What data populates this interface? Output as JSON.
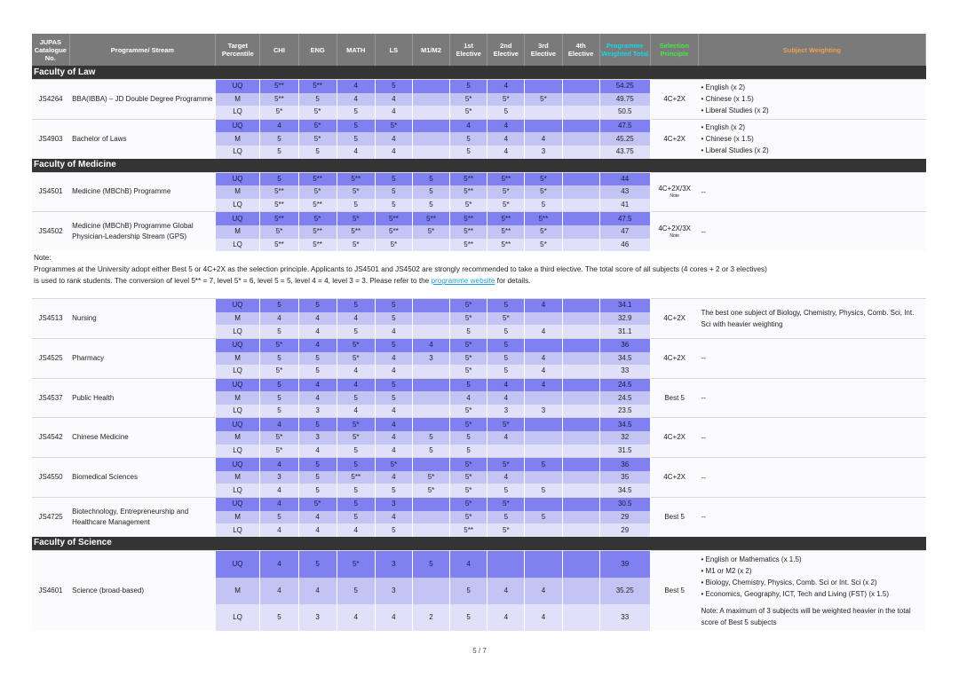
{
  "header": {
    "catalogue": "JUPAS Catalogue No.",
    "programme": "Programme/ Stream",
    "target": "Target Percentile",
    "chi": "CHI",
    "eng": "ENG",
    "math": "MATH",
    "ls": "LS",
    "m1m2": "M1/M2",
    "e1": "1st Elective",
    "e2": "2nd Elective",
    "e3": "3rd Elective",
    "e4": "4th Elective",
    "total": "Programme Weighted Total",
    "selection": "Selection Principle",
    "weighting": "Subject Weighting"
  },
  "faculties": {
    "law": "Faculty of Law",
    "medicine": "Faculty of Medicine",
    "science": "Faculty of Science"
  },
  "note": {
    "title": "Note:",
    "line1": "Programmes at the University adopt either Best 5 or 4C+2X as the selection principle. Applicants to JS4501 and JS4502 are strongly recommended to take a third elective.  The total score of all subjects (4 cores + 2 or 3 electives)",
    "line2": "is used to rank students. The conversion of  level 5** = 7, level 5* = 6, level 5 = 5, level 4 = 4, level 3 = 3. Please refer to the",
    "link": "programme website",
    "line2_end": "for details."
  },
  "programmes": [
    {
      "code": "JS4264",
      "name": "BBA(IBBA) – JD Double Degree Programme",
      "selection": "4C+2X",
      "selection_note": "",
      "weighting": [
        "• English (x 2)",
        "• Chinese (x 1.5)",
        "• Liberal Studies (x 2)"
      ],
      "rows": [
        [
          "UQ",
          "5**",
          "5**",
          "4",
          "5",
          "",
          "5",
          "4",
          "",
          "",
          "54.25"
        ],
        [
          "M",
          "5**",
          "5",
          "4",
          "4",
          "",
          "5*",
          "5*",
          "5*",
          "",
          "49.75"
        ],
        [
          "LQ",
          "5*",
          "5*",
          "5",
          "4",
          "",
          "5*",
          "5",
          "",
          "",
          "50.5"
        ]
      ]
    },
    {
      "code": "JS4903",
      "name": "Bachelor of Laws",
      "selection": "4C+2X",
      "selection_note": "",
      "weighting": [
        "• English (x 2)",
        "• Chinese (x 1.5)",
        "• Liberal Studies (x 2)"
      ],
      "rows": [
        [
          "UQ",
          "4",
          "5*",
          "5",
          "5*",
          "",
          "4",
          "4",
          "",
          "",
          "47.5"
        ],
        [
          "M",
          "5",
          "5*",
          "5",
          "4",
          "",
          "5",
          "4",
          "4",
          "",
          "45.25"
        ],
        [
          "LQ",
          "5",
          "5",
          "4",
          "4",
          "",
          "5",
          "4",
          "3",
          "",
          "43.75"
        ]
      ]
    },
    {
      "code": "JS4501",
      "name": "Medicine (MBChB) Programme",
      "selection": "4C+2X/3X",
      "selection_note": "Note",
      "weighting": [
        "--"
      ],
      "rows": [
        [
          "UQ",
          "5",
          "5**",
          "5**",
          "5",
          "5",
          "5**",
          "5**",
          "5*",
          "",
          "44"
        ],
        [
          "M",
          "5**",
          "5*",
          "5*",
          "5",
          "5",
          "5**",
          "5*",
          "5*",
          "",
          "43"
        ],
        [
          "LQ",
          "5**",
          "5**",
          "5",
          "5",
          "5",
          "5*",
          "5*",
          "5",
          "",
          "41"
        ]
      ]
    },
    {
      "code": "JS4502",
      "name": "Medicine (MBChB) Programme Global Physician-Leadership Stream (GPS)",
      "selection": "4C+2X/3X",
      "selection_note": "Note",
      "weighting": [
        "--"
      ],
      "rows": [
        [
          "UQ",
          "5**",
          "5*",
          "5*",
          "5**",
          "5**",
          "5**",
          "5**",
          "5**",
          "",
          "47.5"
        ],
        [
          "M",
          "5*",
          "5**",
          "5**",
          "5**",
          "5*",
          "5**",
          "5**",
          "5*",
          "",
          "47"
        ],
        [
          "LQ",
          "5**",
          "5**",
          "5*",
          "5*",
          "",
          "5**",
          "5**",
          "5*",
          "",
          "46"
        ]
      ]
    },
    {
      "code": "JS4513",
      "name": "Nursing",
      "selection": "4C+2X",
      "selection_note": "",
      "weighting": [
        "The best one subject of Biology, Chemistry, Physics, Comb. Sci, Int. Sci with heavier weighting"
      ],
      "rows": [
        [
          "UQ",
          "5",
          "5",
          "5",
          "5",
          "",
          "5*",
          "5",
          "4",
          "",
          "34.1"
        ],
        [
          "M",
          "4",
          "4",
          "4",
          "5",
          "",
          "5*",
          "5*",
          "",
          "",
          "32.9"
        ],
        [
          "LQ",
          "5",
          "4",
          "5",
          "4",
          "",
          "5",
          "5",
          "4",
          "",
          "31.1"
        ]
      ]
    },
    {
      "code": "JS4525",
      "name": "Pharmacy",
      "selection": "4C+2X",
      "selection_note": "",
      "weighting": [
        "--"
      ],
      "rows": [
        [
          "UQ",
          "5*",
          "4",
          "5*",
          "5",
          "4",
          "5*",
          "5",
          "",
          "",
          "36"
        ],
        [
          "M",
          "5",
          "5",
          "5*",
          "4",
          "3",
          "5*",
          "5",
          "4",
          "",
          "34.5"
        ],
        [
          "LQ",
          "5*",
          "5",
          "4",
          "4",
          "",
          "5*",
          "5",
          "4",
          "",
          "33"
        ]
      ]
    },
    {
      "code": "JS4537",
      "name": "Public Health",
      "selection": "Best 5",
      "selection_note": "",
      "weighting": [
        "--"
      ],
      "rows": [
        [
          "UQ",
          "5",
          "4",
          "4",
          "5",
          "",
          "5",
          "4",
          "4",
          "",
          "24.5"
        ],
        [
          "M",
          "5",
          "4",
          "5",
          "5",
          "",
          "4",
          "4",
          "",
          "",
          "24.5"
        ],
        [
          "LQ",
          "5",
          "3",
          "4",
          "4",
          "",
          "5*",
          "3",
          "3",
          "",
          "23.5"
        ]
      ]
    },
    {
      "code": "JS4542",
      "name": "Chinese Medicine",
      "selection": "4C+2X",
      "selection_note": "",
      "weighting": [
        "--"
      ],
      "rows": [
        [
          "UQ",
          "4",
          "5",
          "5*",
          "4",
          "",
          "5*",
          "5*",
          "",
          "",
          "34.5"
        ],
        [
          "M",
          "5*",
          "3",
          "5*",
          "4",
          "5",
          "5",
          "4",
          "",
          "",
          "32"
        ],
        [
          "LQ",
          "5*",
          "4",
          "5",
          "4",
          "5",
          "5",
          "",
          "",
          "",
          "31.5"
        ]
      ]
    },
    {
      "code": "JS4550",
      "name": "Biomedical Sciences",
      "selection": "4C+2X",
      "selection_note": "",
      "weighting": [
        "--"
      ],
      "rows": [
        [
          "UQ",
          "4",
          "5",
          "5",
          "5*",
          "",
          "5*",
          "5*",
          "5",
          "",
          "36"
        ],
        [
          "M",
          "3",
          "5",
          "5**",
          "4",
          "5*",
          "5*",
          "4",
          "",
          "",
          "35"
        ],
        [
          "LQ",
          "4",
          "5",
          "5",
          "5",
          "5*",
          "5*",
          "5",
          "5",
          "",
          "34.5"
        ]
      ]
    },
    {
      "code": "JS4725",
      "name": "Biotechnology, Entrepreneurship and Healthcare Management",
      "selection": "Best 5",
      "selection_note": "",
      "weighting": [
        "--"
      ],
      "rows": [
        [
          "UQ",
          "4",
          "5*",
          "5",
          "3",
          "",
          "5*",
          "5*",
          "",
          "",
          "30.5"
        ],
        [
          "M",
          "5",
          "4",
          "5",
          "4",
          "",
          "5*",
          "5",
          "5",
          "",
          "29"
        ],
        [
          "LQ",
          "4",
          "4",
          "4",
          "5",
          "",
          "5**",
          "5*",
          "",
          "",
          "29"
        ]
      ]
    },
    {
      "code": "JS4601",
      "name": "Science (broad-based)",
      "selection": "Best 5",
      "selection_note": "",
      "weighting": [
        "• English or Mathematics (x 1.5)",
        "• M1 or M2 (x 2)",
        "• Biology, Chemistry, Physics, Comb. Sci or Int. Sci (x 2)",
        "• Economics, Geography, ICT, Tech and Living (FST) (x 1.5)",
        "",
        "Note: A maximum of 3 subjects will be weighted heavier in the total score of Best 5 subjects"
      ],
      "rows": [
        [
          "UQ",
          "4",
          "5",
          "5*",
          "3",
          "5",
          "4",
          "",
          "",
          "",
          "39"
        ],
        [
          "M",
          "4",
          "4",
          "5",
          "3",
          "",
          "5",
          "4",
          "4",
          "",
          "35.25"
        ],
        [
          "LQ",
          "5",
          "3",
          "4",
          "4",
          "2",
          "5",
          "4",
          "4",
          "",
          "33"
        ]
      ]
    }
  ],
  "page_number": "5 / 7"
}
